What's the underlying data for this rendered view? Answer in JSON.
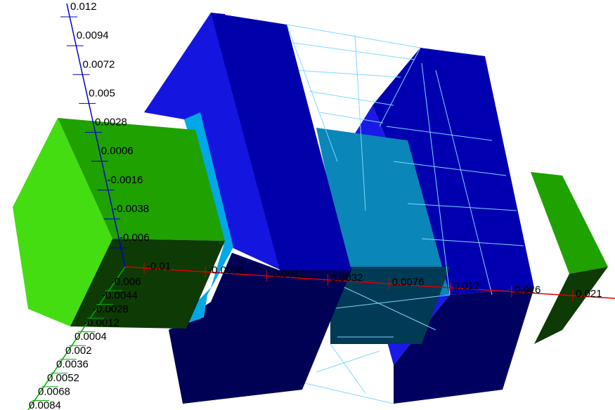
{
  "axes": {
    "vertical": [
      "0.012",
      "0.0094",
      "0.0072",
      "0.005",
      "0.0028",
      "0.0006",
      "-0.0016",
      "-0.0038",
      "-0.006"
    ],
    "horizontal": [
      "-0.01",
      "-0.0056",
      "-0.0012",
      "0.0032",
      "0.0076",
      "0.012",
      "0.016",
      "0.021"
    ],
    "depth": [
      "-0.006",
      "-0.0044",
      "-0.0028",
      "-0.0012",
      "0.0004",
      "0.002",
      "0.0036",
      "0.0052",
      "0.0068",
      "0.0084"
    ]
  }
}
